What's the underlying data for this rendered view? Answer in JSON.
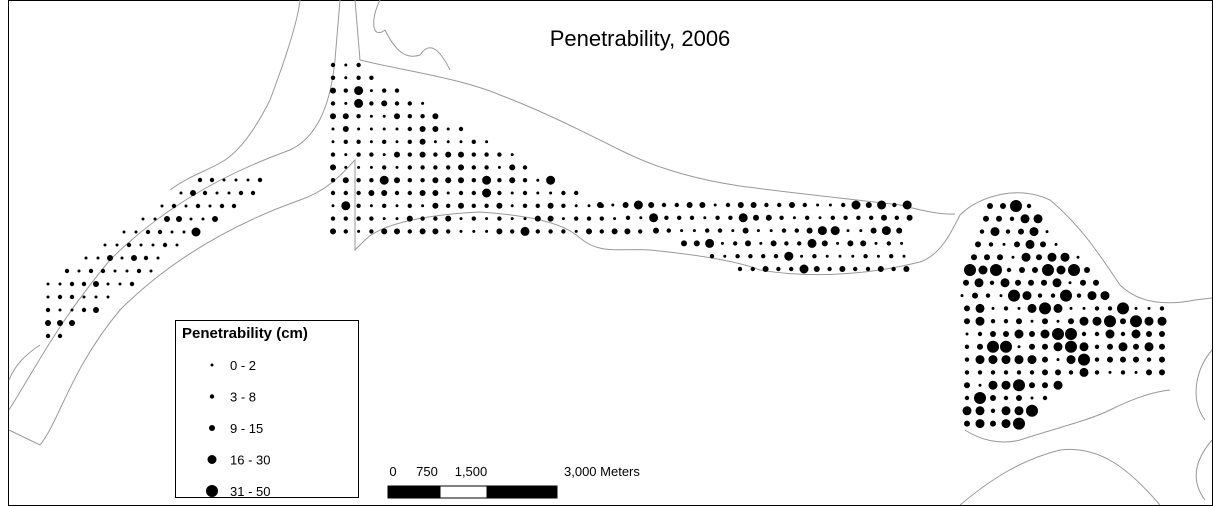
{
  "title": "Penetrability, 2006",
  "legend": {
    "title": "Penetrability (cm)",
    "items": [
      "0 - 2",
      "3 - 8",
      "9 - 15",
      "16 - 30",
      "31 - 50"
    ]
  },
  "scale_bar": {
    "labels": [
      "0",
      "750",
      "1,500",
      "3,000 Meters"
    ]
  }
}
